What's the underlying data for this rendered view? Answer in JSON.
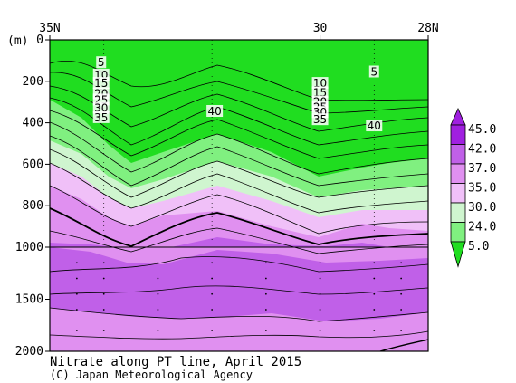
{
  "chart_data": {
    "type": "heatmap",
    "title": "Nitrate along PT line, April 2015",
    "credit": "(C) Japan Meteorological Agency",
    "y_unit_label": "(m)",
    "x_ticks": [
      {
        "lat": 35,
        "label": "35N"
      },
      {
        "lat": 30,
        "label": "30"
      },
      {
        "lat": 28,
        "label": "28N"
      }
    ],
    "y_ticks_upper": [
      0,
      200,
      400,
      600,
      800,
      1000
    ],
    "y_ticks_lower": [
      1500,
      2000
    ],
    "ylim": [
      0,
      2000
    ],
    "xlim_lat": [
      35,
      28
    ],
    "colorbar": {
      "labels": [
        "45.0",
        "42.0",
        "37.0",
        "35.0",
        "30.0",
        "24.0",
        "5.0"
      ],
      "colors": [
        "#a020e0",
        "#c060e8",
        "#e090f0",
        "#f0c0f8",
        "#cff5cf",
        "#80f080",
        "#20dd20"
      ]
    },
    "contour_labels": [
      {
        "text": "5",
        "lat": 34.05,
        "depth": 110
      },
      {
        "text": "10",
        "lat": 34.05,
        "depth": 170
      },
      {
        "text": "15",
        "lat": 34.05,
        "depth": 210
      },
      {
        "text": "20",
        "lat": 34.05,
        "depth": 260
      },
      {
        "text": "25",
        "lat": 34.05,
        "depth": 290
      },
      {
        "text": "30",
        "lat": 34.05,
        "depth": 330
      },
      {
        "text": "35",
        "lat": 34.05,
        "depth": 375
      },
      {
        "text": "40",
        "lat": 31.95,
        "depth": 345
      },
      {
        "text": "5",
        "lat": 29.0,
        "depth": 155
      },
      {
        "text": "10",
        "lat": 30.0,
        "depth": 210
      },
      {
        "text": "15",
        "lat": 30.0,
        "depth": 255
      },
      {
        "text": "20",
        "lat": 30.0,
        "depth": 300
      },
      {
        "text": "25",
        "lat": 30.0,
        "depth": 325
      },
      {
        "text": "30",
        "lat": 30.0,
        "depth": 350
      },
      {
        "text": "35",
        "lat": 30.0,
        "depth": 385
      },
      {
        "text": "40",
        "lat": 29.0,
        "depth": 415
      }
    ]
  }
}
